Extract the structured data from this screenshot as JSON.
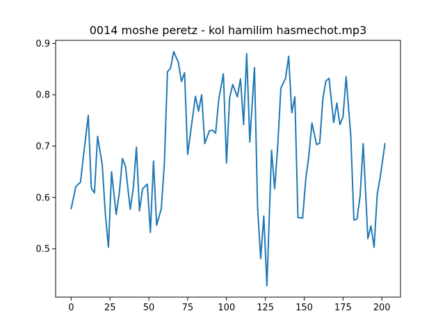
{
  "chart_data": {
    "type": "line",
    "title": "0014 moshe peretz - kol hamilim hasmechot.mp3",
    "xlabel": "",
    "ylabel": "",
    "xlim": [
      -10,
      212
    ],
    "ylim": [
      0.406,
      0.906
    ],
    "xticks": [
      0,
      25,
      50,
      75,
      100,
      125,
      150,
      175,
      200
    ],
    "yticks": [
      0.5,
      0.6,
      0.7,
      0.8,
      0.9
    ],
    "xtick_labels": [
      "0",
      "25",
      "50",
      "75",
      "100",
      "125",
      "150",
      "175",
      "200"
    ],
    "ytick_labels": [
      "0.5",
      "0.6",
      "0.7",
      "0.8",
      "0.9"
    ],
    "grid": false,
    "series": [
      {
        "color": "#1f77b4",
        "x": [
          0,
          3,
          6,
          8,
          11,
          13,
          15,
          17,
          20,
          22,
          24,
          26,
          29,
          31,
          33,
          35,
          38,
          40,
          42,
          44,
          46,
          49,
          51,
          53,
          55,
          58,
          60,
          62,
          64,
          66,
          69,
          71,
          73,
          75,
          77,
          80,
          82,
          84,
          86,
          89,
          91,
          93,
          95,
          98,
          100,
          102,
          104,
          107,
          109,
          111,
          113,
          115,
          118,
          120,
          122,
          124,
          126,
          129,
          131,
          133,
          135,
          138,
          140,
          142,
          144,
          146,
          149,
          151,
          153,
          155,
          158,
          160,
          162,
          164,
          166,
          169,
          171,
          173,
          175,
          177,
          180,
          182,
          184,
          186,
          188,
          191,
          193,
          195,
          197,
          199,
          202
        ],
        "y": [
          0.578,
          0.621,
          0.63,
          0.683,
          0.76,
          0.618,
          0.609,
          0.719,
          0.664,
          0.569,
          0.503,
          0.65,
          0.567,
          0.609,
          0.676,
          0.66,
          0.577,
          0.618,
          0.698,
          0.574,
          0.617,
          0.626,
          0.532,
          0.671,
          0.546,
          0.578,
          0.666,
          0.845,
          0.852,
          0.884,
          0.863,
          0.826,
          0.843,
          0.684,
          0.73,
          0.797,
          0.768,
          0.8,
          0.705,
          0.73,
          0.731,
          0.725,
          0.791,
          0.841,
          0.667,
          0.794,
          0.82,
          0.796,
          0.831,
          0.742,
          0.88,
          0.708,
          0.853,
          0.581,
          0.481,
          0.564,
          0.428,
          0.692,
          0.617,
          0.702,
          0.813,
          0.832,
          0.875,
          0.765,
          0.796,
          0.561,
          0.56,
          0.635,
          0.681,
          0.745,
          0.703,
          0.706,
          0.792,
          0.827,
          0.832,
          0.746,
          0.784,
          0.742,
          0.757,
          0.835,
          0.72,
          0.556,
          0.558,
          0.603,
          0.705,
          0.52,
          0.545,
          0.503,
          0.606,
          0.641,
          0.705
        ]
      }
    ]
  }
}
